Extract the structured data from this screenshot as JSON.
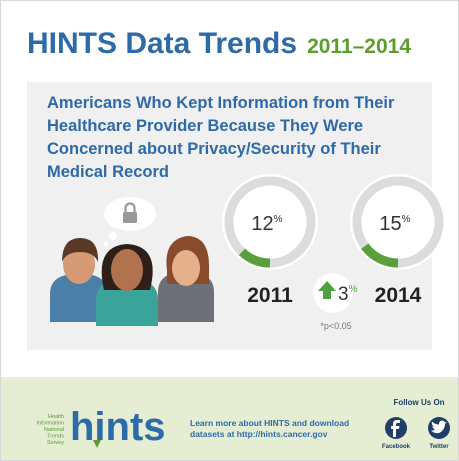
{
  "header": {
    "title": "HINTS Data Trends",
    "years": "2011–2014"
  },
  "panel": {
    "heading": [
      "Americans Who Kept Information from Their",
      "Healthcare Provider Because They Were",
      "Concerned about Privacy/Security of Their",
      "Medical Record"
    ],
    "stats": [
      {
        "year": "2011",
        "value": 12,
        "unit": "%"
      },
      {
        "year": "2014",
        "value": 15,
        "unit": "%"
      }
    ],
    "change": {
      "value": 3,
      "unit": "%"
    },
    "note": "*p<0.05"
  },
  "footer": {
    "logo": "hints",
    "logo_subtitle": [
      "Health",
      "Information",
      "National",
      "Trends",
      "Survey"
    ],
    "learn_more": [
      "Learn more about HINTS and download",
      "datasets at http://hints.cancer.gov"
    ],
    "follow": "Follow Us On",
    "social": [
      "Facebook",
      "Twitter"
    ]
  }
}
